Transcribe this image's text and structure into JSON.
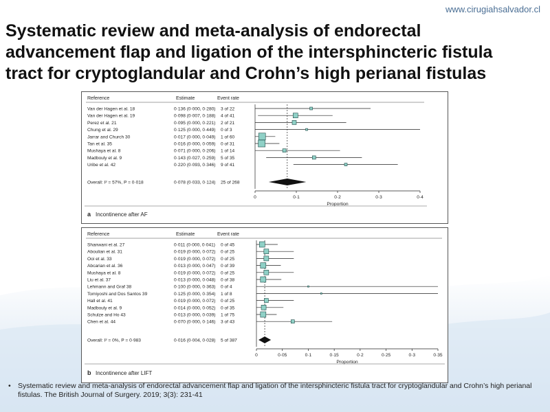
{
  "site": "www.cirugiahsalvador.cl",
  "title_lines": [
    "Systematic review and meta-analysis of endorectal",
    "advancement flap and ligation of the intersphincteric fistula",
    "tract for cryptoglandular and Crohn’s high perianal fistulas"
  ],
  "footer": "Systematic review and meta-analysis of endorectal advancement flap and ligation of the intersphincteric fistula tract for cryptoglandular and Crohn’s high perianal fistulas. The British Journal of Surgery. 2019; 3(3): 231-41",
  "chart_data": [
    {
      "type": "forest",
      "panel_label": "a",
      "caption": "Incontinence after AF",
      "headers": {
        "reference": "Reference",
        "estimate": "Estimate",
        "event_rate": "Event rate"
      },
      "xlabel": "Proportion",
      "xlim": [
        0,
        0.4
      ],
      "ticks": [
        0,
        0.1,
        0.2,
        0.3,
        0.4
      ],
      "tick_labels": [
        "0",
        "0·1",
        "0·2",
        "0·3",
        "0·4"
      ],
      "studies": [
        {
          "reference": "Van der Hagen et al.",
          "sup": "18",
          "estimate": "0·136 (0·000, 0·280)",
          "event_rate": "3 of 22",
          "est": 0.136,
          "lo": 0.0,
          "hi": 0.28,
          "w": 4
        },
        {
          "reference": "Van der Hagen et al.",
          "sup": "19",
          "estimate": "0·098 (0·007, 0·188)",
          "event_rate": "4 of 41",
          "est": 0.098,
          "lo": 0.007,
          "hi": 0.188,
          "w": 7
        },
        {
          "reference": "Perez et al.",
          "sup": "21",
          "estimate": "0·095 (0·000, 0·221)",
          "event_rate": "2 of 21",
          "est": 0.095,
          "lo": 0.0,
          "hi": 0.221,
          "w": 6
        },
        {
          "reference": "Chung et al.",
          "sup": "29",
          "estimate": "0·125 (0·000, 0·449)",
          "event_rate": "0 of 3",
          "est": 0.125,
          "lo": 0.0,
          "hi": 0.449,
          "w": 3
        },
        {
          "reference": "Jarrar and Church",
          "sup": "30",
          "estimate": "0·017 (0·000, 0·049)",
          "event_rate": "1 of 60",
          "est": 0.017,
          "lo": 0.0,
          "hi": 0.049,
          "w": 10
        },
        {
          "reference": "Tan et al.",
          "sup": "35",
          "estimate": "0·016 (0·000, 0·059)",
          "event_rate": "0 of 31",
          "est": 0.016,
          "lo": 0.0,
          "hi": 0.059,
          "w": 10
        },
        {
          "reference": "Mushaya et al.",
          "sup": "8",
          "estimate": "0·071 (0·000, 0·206)",
          "event_rate": "1 of 14",
          "est": 0.071,
          "lo": 0.0,
          "hi": 0.206,
          "w": 5
        },
        {
          "reference": "Madbouly et al.",
          "sup": "9",
          "estimate": "0·143 (0·027, 0·259)",
          "event_rate": "5 of 35",
          "est": 0.143,
          "lo": 0.027,
          "hi": 0.259,
          "w": 5
        },
        {
          "reference": "Uribe et al.",
          "sup": "42",
          "estimate": "0·220 (0·093, 0·346)",
          "event_rate": "9 of 41",
          "est": 0.22,
          "lo": 0.093,
          "hi": 0.346,
          "w": 4
        }
      ],
      "overall": {
        "reference": "Overall: I² = 57%, P = 0·018",
        "estimate": "0·078 (0·033, 0·124)",
        "event_rate": "25 of 268",
        "est": 0.078,
        "lo": 0.033,
        "hi": 0.124
      }
    },
    {
      "type": "forest",
      "panel_label": "b",
      "caption": "Incontinence after LIFT",
      "headers": {
        "reference": "Reference",
        "estimate": "Estimate",
        "event_rate": "Event rate"
      },
      "xlabel": "Proportion",
      "xlim": [
        0,
        0.35
      ],
      "ticks": [
        0,
        0.05,
        0.1,
        0.15,
        0.2,
        0.25,
        0.3,
        0.35
      ],
      "tick_labels": [
        "0",
        "0·05",
        "0·1",
        "0·15",
        "0·2",
        "0·25",
        "0·3",
        "0·35"
      ],
      "studies": [
        {
          "reference": "Shanwani et al.",
          "sup": "27",
          "estimate": "0·011 (0·000, 0·041)",
          "event_rate": "0 of 45",
          "est": 0.011,
          "lo": 0.0,
          "hi": 0.041,
          "w": 8
        },
        {
          "reference": "Aboulian et al.",
          "sup": "31",
          "estimate": "0·019 (0·000, 0·072)",
          "event_rate": "0 of 25",
          "est": 0.019,
          "lo": 0.0,
          "hi": 0.072,
          "w": 7
        },
        {
          "reference": "Ooi et al.",
          "sup": "33",
          "estimate": "0·019 (0·000, 0·072)",
          "event_rate": "0 of 25",
          "est": 0.019,
          "lo": 0.0,
          "hi": 0.072,
          "w": 7
        },
        {
          "reference": "Abcarian et al.",
          "sup": "36",
          "estimate": "0·013 (0·000, 0·047)",
          "event_rate": "0 of 39",
          "est": 0.013,
          "lo": 0.0,
          "hi": 0.047,
          "w": 8
        },
        {
          "reference": "Mushaya et al.",
          "sup": "8",
          "estimate": "0·019 (0·000, 0·072)",
          "event_rate": "0 of 25",
          "est": 0.019,
          "lo": 0.0,
          "hi": 0.072,
          "w": 7
        },
        {
          "reference": "Liu et al.",
          "sup": "37",
          "estimate": "0·013 (0·000, 0·048)",
          "event_rate": "0 of 38",
          "est": 0.013,
          "lo": 0.0,
          "hi": 0.048,
          "w": 8
        },
        {
          "reference": "Lehmann and Graf",
          "sup": "38",
          "estimate": "0·100 (0·000, 0·363)",
          "event_rate": "0 of 4",
          "est": 0.1,
          "lo": 0.0,
          "hi": 0.363,
          "w": 2
        },
        {
          "reference": "Tomiyoshi and Dos Santos",
          "sup": "39",
          "estimate": "0·125 (0·000, 0·354)",
          "event_rate": "1 of 8",
          "est": 0.125,
          "lo": 0.0,
          "hi": 0.354,
          "w": 2
        },
        {
          "reference": "Hall et al.",
          "sup": "41",
          "estimate": "0·019 (0·000, 0·072)",
          "event_rate": "0 of 25",
          "est": 0.019,
          "lo": 0.0,
          "hi": 0.072,
          "w": 6
        },
        {
          "reference": "Madbouly et al.",
          "sup": "9",
          "estimate": "0·014 (0·000, 0·052)",
          "event_rate": "0 of 35",
          "est": 0.014,
          "lo": 0.0,
          "hi": 0.052,
          "w": 7
        },
        {
          "reference": "Schulze and Ho",
          "sup": "43",
          "estimate": "0·013 (0·000, 0·039)",
          "event_rate": "1 of 75",
          "est": 0.013,
          "lo": 0.0,
          "hi": 0.039,
          "w": 8
        },
        {
          "reference": "Chen et al.",
          "sup": "44",
          "estimate": "0·070 (0·000, 0·146)",
          "event_rate": "3 of 43",
          "est": 0.07,
          "lo": 0.0,
          "hi": 0.146,
          "w": 5
        }
      ],
      "overall": {
        "reference": "Overall: I² = 0%, P = 0·983",
        "estimate": "0·016 (0·004, 0·028)",
        "event_rate": "5 of 387",
        "est": 0.016,
        "lo": 0.004,
        "hi": 0.028
      }
    }
  ],
  "colors": {
    "box_fill": "#8fd0c6",
    "box_stroke": "#1f4a46",
    "site_text": "#4a6e94"
  }
}
